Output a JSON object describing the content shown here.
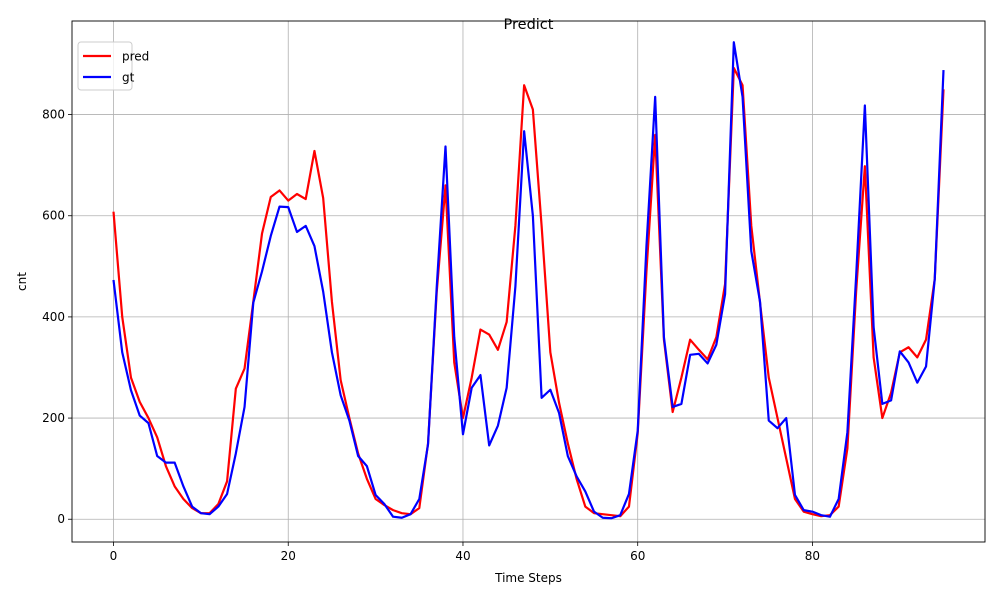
{
  "chart_data": {
    "type": "line",
    "title": "Predict",
    "xlabel": "Time Steps",
    "ylabel": "cnt",
    "xlim": [
      -4.75,
      99.75
    ],
    "ylim": [
      -45,
      985
    ],
    "xticks": [
      0,
      20,
      40,
      60,
      80
    ],
    "yticks": [
      0,
      200,
      400,
      600,
      800
    ],
    "grid": true,
    "legend_position": "upper-left",
    "series": [
      {
        "name": "pred",
        "color": "#ff0000",
        "values": [
          608,
          400,
          280,
          232,
          200,
          162,
          105,
          65,
          40,
          22,
          12,
          12,
          30,
          75,
          258,
          298,
          430,
          565,
          637,
          650,
          630,
          643,
          633,
          728,
          635,
          430,
          275,
          200,
          130,
          80,
          40,
          28,
          18,
          12,
          10,
          22,
          150,
          450,
          660,
          310,
          200,
          280,
          375,
          365,
          335,
          390,
          580,
          858,
          810,
          580,
          330,
          230,
          150,
          80,
          25,
          12,
          10,
          8,
          6,
          25,
          170,
          490,
          760,
          355,
          212,
          280,
          355,
          335,
          316,
          360,
          465,
          892,
          858,
          580,
          428,
          280,
          200,
          120,
          40,
          15,
          10,
          6,
          8,
          25,
          140,
          450,
          698,
          320,
          200,
          250,
          330,
          340,
          320,
          355,
          475,
          850
        ]
      },
      {
        "name": "gt",
        "color": "#0000ff",
        "values": [
          473,
          330,
          255,
          205,
          190,
          125,
          112,
          112,
          65,
          25,
          12,
          10,
          25,
          50,
          130,
          222,
          428,
          490,
          560,
          618,
          617,
          568,
          580,
          540,
          450,
          330,
          245,
          195,
          125,
          105,
          48,
          30,
          5,
          3,
          10,
          40,
          148,
          460,
          737,
          360,
          168,
          260,
          285,
          146,
          185,
          260,
          460,
          767,
          600,
          240,
          256,
          210,
          125,
          85,
          55,
          15,
          3,
          2,
          8,
          50,
          175,
          540,
          835,
          360,
          222,
          228,
          325,
          327,
          308,
          345,
          445,
          943,
          835,
          530,
          430,
          195,
          180,
          200,
          48,
          18,
          15,
          8,
          5,
          40,
          172,
          480,
          818,
          380,
          228,
          235,
          332,
          310,
          270,
          302,
          475,
          888
        ]
      }
    ]
  }
}
